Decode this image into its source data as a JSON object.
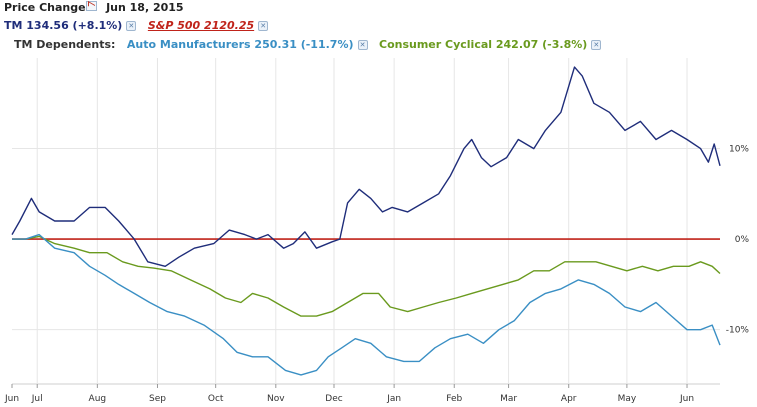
{
  "header": {
    "title": "Price Change",
    "date": "Jun 18, 2015",
    "icon": "chart-settings-icon"
  },
  "legend": {
    "tm": "TM 134.56 (+8.1%)",
    "sp": "S&P 500 2120.25",
    "dependents_label": "TM Dependents:",
    "auto": "Auto Manufacturers 250.31 (-11.7%)",
    "consumer": "Consumer Cyclical 242.07 (-3.8%)",
    "remove_icon": "close-icon"
  },
  "colors": {
    "tm": "#1f2d7a",
    "sp": "#c0231a",
    "auto": "#3a8fc4",
    "consumer": "#6a9a1e",
    "grid": "#e6e6e6"
  },
  "chart_data": {
    "type": "line",
    "x_ticks": [
      "Jun",
      "Jul",
      "Aug",
      "Sep",
      "Oct",
      "Nov",
      "Dec",
      "Jan",
      "Feb",
      "Mar",
      "Apr",
      "May",
      "Jun"
    ],
    "y_ticks": [
      "10%",
      "0%",
      "-10%"
    ],
    "y_tick_values": [
      10,
      0,
      -10
    ],
    "ylim": [
      -16,
      20
    ],
    "grid": true,
    "series": [
      {
        "name": "TM 134.56 (+8.1%)",
        "color": "#1f2d7a",
        "points": [
          [
            "2014-06-18",
            0.5
          ],
          [
            "2014-06-22",
            2
          ],
          [
            "2014-06-28",
            4.5
          ],
          [
            "2014-07-02",
            3
          ],
          [
            "2014-07-10",
            2
          ],
          [
            "2014-07-20",
            2
          ],
          [
            "2014-07-28",
            3.5
          ],
          [
            "2014-08-05",
            3.5
          ],
          [
            "2014-08-12",
            2
          ],
          [
            "2014-08-20",
            0
          ],
          [
            "2014-08-27",
            -2.5
          ],
          [
            "2014-09-05",
            -3
          ],
          [
            "2014-09-12",
            -2
          ],
          [
            "2014-09-20",
            -1
          ],
          [
            "2014-09-30",
            -0.5
          ],
          [
            "2014-10-08",
            1
          ],
          [
            "2014-10-16",
            0.5
          ],
          [
            "2014-10-22",
            0
          ],
          [
            "2014-10-28",
            0.5
          ],
          [
            "2014-11-05",
            -1
          ],
          [
            "2014-11-10",
            -0.5
          ],
          [
            "2014-11-16",
            0.8
          ],
          [
            "2014-11-22",
            -1
          ],
          [
            "2014-11-30",
            -0.3
          ],
          [
            "2014-12-04",
            0
          ],
          [
            "2014-12-08",
            4
          ],
          [
            "2014-12-14",
            5.5
          ],
          [
            "2014-12-20",
            4.5
          ],
          [
            "2014-12-26",
            3
          ],
          [
            "2014-12-31",
            3.5
          ],
          [
            "2015-01-08",
            3
          ],
          [
            "2015-01-16",
            4
          ],
          [
            "2015-01-24",
            5
          ],
          [
            "2015-01-30",
            7
          ],
          [
            "2015-02-06",
            10
          ],
          [
            "2015-02-10",
            11
          ],
          [
            "2015-02-15",
            9
          ],
          [
            "2015-02-20",
            8
          ],
          [
            "2015-02-28",
            9
          ],
          [
            "2015-03-06",
            11
          ],
          [
            "2015-03-14",
            10
          ],
          [
            "2015-03-20",
            12
          ],
          [
            "2015-03-28",
            14
          ],
          [
            "2015-04-04",
            19
          ],
          [
            "2015-04-08",
            18
          ],
          [
            "2015-04-14",
            15
          ],
          [
            "2015-04-22",
            14
          ],
          [
            "2015-04-30",
            12
          ],
          [
            "2015-05-08",
            13
          ],
          [
            "2015-05-16",
            11
          ],
          [
            "2015-05-24",
            12
          ],
          [
            "2015-06-01",
            11
          ],
          [
            "2015-06-08",
            10
          ],
          [
            "2015-06-12",
            8.5
          ],
          [
            "2015-06-15",
            10.5
          ],
          [
            "2015-06-18",
            8.1
          ]
        ]
      },
      {
        "name": "S&P 500 2120.25",
        "color": "#c0231a",
        "points": [
          [
            "2014-06-18",
            0
          ],
          [
            "2015-06-18",
            0
          ]
        ]
      },
      {
        "name": "Auto Manufacturers 250.31 (-11.7%)",
        "color": "#3a8fc4",
        "points": [
          [
            "2014-06-18",
            0
          ],
          [
            "2014-06-25",
            0
          ],
          [
            "2014-07-02",
            0.5
          ],
          [
            "2014-07-10",
            -1
          ],
          [
            "2014-07-20",
            -1.5
          ],
          [
            "2014-07-28",
            -3
          ],
          [
            "2014-08-05",
            -4
          ],
          [
            "2014-08-12",
            -5
          ],
          [
            "2014-08-20",
            -6
          ],
          [
            "2014-08-28",
            -7
          ],
          [
            "2014-09-06",
            -8
          ],
          [
            "2014-09-15",
            -8.5
          ],
          [
            "2014-09-25",
            -9.5
          ],
          [
            "2014-10-05",
            -11
          ],
          [
            "2014-10-12",
            -12.5
          ],
          [
            "2014-10-20",
            -13
          ],
          [
            "2014-10-28",
            -13
          ],
          [
            "2014-11-06",
            -14.5
          ],
          [
            "2014-11-14",
            -15
          ],
          [
            "2014-11-22",
            -14.5
          ],
          [
            "2014-11-28",
            -13
          ],
          [
            "2014-12-05",
            -12
          ],
          [
            "2014-12-12",
            -11
          ],
          [
            "2014-12-20",
            -11.5
          ],
          [
            "2014-12-28",
            -13
          ],
          [
            "2015-01-06",
            -13.5
          ],
          [
            "2015-01-14",
            -13.5
          ],
          [
            "2015-01-22",
            -12
          ],
          [
            "2015-01-30",
            -11
          ],
          [
            "2015-02-08",
            -10.5
          ],
          [
            "2015-02-16",
            -11.5
          ],
          [
            "2015-02-24",
            -10
          ],
          [
            "2015-03-04",
            -9
          ],
          [
            "2015-03-12",
            -7
          ],
          [
            "2015-03-20",
            -6
          ],
          [
            "2015-03-28",
            -5.5
          ],
          [
            "2015-04-06",
            -4.5
          ],
          [
            "2015-04-14",
            -5
          ],
          [
            "2015-04-22",
            -6
          ],
          [
            "2015-04-30",
            -7.5
          ],
          [
            "2015-05-08",
            -8
          ],
          [
            "2015-05-16",
            -7
          ],
          [
            "2015-05-24",
            -8.5
          ],
          [
            "2015-06-01",
            -10
          ],
          [
            "2015-06-08",
            -10
          ],
          [
            "2015-06-14",
            -9.5
          ],
          [
            "2015-06-18",
            -11.7
          ]
        ]
      },
      {
        "name": "Consumer Cyclical 242.07 (-3.8%)",
        "color": "#6a9a1e",
        "points": [
          [
            "2014-06-18",
            0
          ],
          [
            "2014-06-25",
            0
          ],
          [
            "2014-07-02",
            0.3
          ],
          [
            "2014-07-10",
            -0.5
          ],
          [
            "2014-07-20",
            -1
          ],
          [
            "2014-07-28",
            -1.5
          ],
          [
            "2014-08-06",
            -1.5
          ],
          [
            "2014-08-14",
            -2.5
          ],
          [
            "2014-08-22",
            -3
          ],
          [
            "2014-08-30",
            -3.2
          ],
          [
            "2014-09-08",
            -3.5
          ],
          [
            "2014-09-18",
            -4.5
          ],
          [
            "2014-09-28",
            -5.5
          ],
          [
            "2014-10-06",
            -6.5
          ],
          [
            "2014-10-14",
            -7
          ],
          [
            "2014-10-20",
            -6
          ],
          [
            "2014-10-28",
            -6.5
          ],
          [
            "2014-11-05",
            -7.5
          ],
          [
            "2014-11-14",
            -8.5
          ],
          [
            "2014-11-22",
            -8.5
          ],
          [
            "2014-11-30",
            -8
          ],
          [
            "2014-12-08",
            -7
          ],
          [
            "2014-12-16",
            -6
          ],
          [
            "2014-12-24",
            -6
          ],
          [
            "2014-12-30",
            -7.5
          ],
          [
            "2015-01-08",
            -8
          ],
          [
            "2015-01-16",
            -7.5
          ],
          [
            "2015-01-24",
            -7
          ],
          [
            "2015-02-02",
            -6.5
          ],
          [
            "2015-02-10",
            -6
          ],
          [
            "2015-02-18",
            -5.5
          ],
          [
            "2015-02-26",
            -5
          ],
          [
            "2015-03-06",
            -4.5
          ],
          [
            "2015-03-14",
            -3.5
          ],
          [
            "2015-03-22",
            -3.5
          ],
          [
            "2015-03-30",
            -2.5
          ],
          [
            "2015-04-07",
            -2.5
          ],
          [
            "2015-04-15",
            -2.5
          ],
          [
            "2015-04-23",
            -3
          ],
          [
            "2015-05-01",
            -3.5
          ],
          [
            "2015-05-09",
            -3
          ],
          [
            "2015-05-17",
            -3.5
          ],
          [
            "2015-05-25",
            -3
          ],
          [
            "2015-06-02",
            -3
          ],
          [
            "2015-06-08",
            -2.5
          ],
          [
            "2015-06-14",
            -3
          ],
          [
            "2015-06-18",
            -3.8
          ]
        ]
      }
    ]
  }
}
